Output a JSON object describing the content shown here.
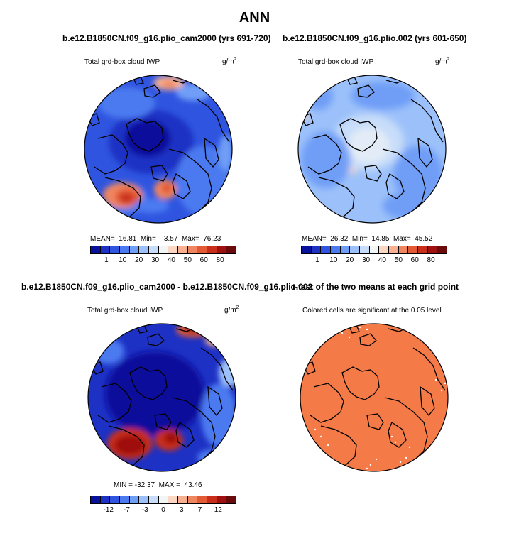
{
  "title": "ANN",
  "panels": [
    {
      "id": "p1",
      "title": "b.e12.B1850CN.f09_g16.plio_cam2000 (yrs 691-720)",
      "variable": "Total grd-box cloud IWP",
      "units": "g/m",
      "units_sup": "2",
      "stats": "MEAN=  16.81  Min=    3.57  Max=  76.23",
      "colorbar": {
        "colors": [
          "#08119c",
          "#1d31c4",
          "#2f55e0",
          "#4b7af0",
          "#6f9ef7",
          "#9cc1fa",
          "#c7ddf9",
          "#f3f6f7",
          "#fbd7c4",
          "#f8b090",
          "#f08660",
          "#e35a35",
          "#c92e1a",
          "#9f1111",
          "#6a0a0a"
        ],
        "ticks": [
          "1",
          "10",
          "20",
          "30",
          "40",
          "50",
          "60",
          "80"
        ]
      }
    },
    {
      "id": "p2",
      "title": "b.e12.B1850CN.f09_g16.plio.002 (yrs 601-650)",
      "variable": "Total grd-box cloud IWP",
      "units": "g/m",
      "units_sup": "2",
      "stats": "MEAN=  26.32  Min=  14.85  Max=  45.52",
      "colorbar": {
        "colors": [
          "#08119c",
          "#1d31c4",
          "#2f55e0",
          "#4b7af0",
          "#6f9ef7",
          "#9cc1fa",
          "#c7ddf9",
          "#f3f6f7",
          "#fbd7c4",
          "#f8b090",
          "#f08660",
          "#e35a35",
          "#c92e1a",
          "#9f1111",
          "#6a0a0a"
        ],
        "ticks": [
          "1",
          "10",
          "20",
          "30",
          "40",
          "50",
          "60",
          "80"
        ]
      }
    },
    {
      "id": "p3",
      "title": "b.e12.B1850CN.f09_g16.plio_cam2000 - b.e12.B1850CN.f09_g16.plio.002",
      "variable": "Total grd-box cloud IWP",
      "units": "g/m",
      "units_sup": "2",
      "stats": "MIN = -32.37  MAX =  43.46",
      "colorbar": {
        "colors": [
          "#08119c",
          "#1d31c4",
          "#2f55e0",
          "#4b7af0",
          "#6f9ef7",
          "#9cc1fa",
          "#c7ddf9",
          "#f3f6f7",
          "#fbd7c4",
          "#f8b090",
          "#f08660",
          "#e35a35",
          "#c92e1a",
          "#9f1111",
          "#6a0a0a"
        ],
        "ticks": [
          "-12",
          "-7",
          "-3",
          "0",
          "3",
          "7",
          "12"
        ]
      }
    },
    {
      "id": "p4",
      "title": "t-test of the two means at each grid point",
      "variable": "Colored cells are significant at the 0.05 level"
    }
  ]
}
